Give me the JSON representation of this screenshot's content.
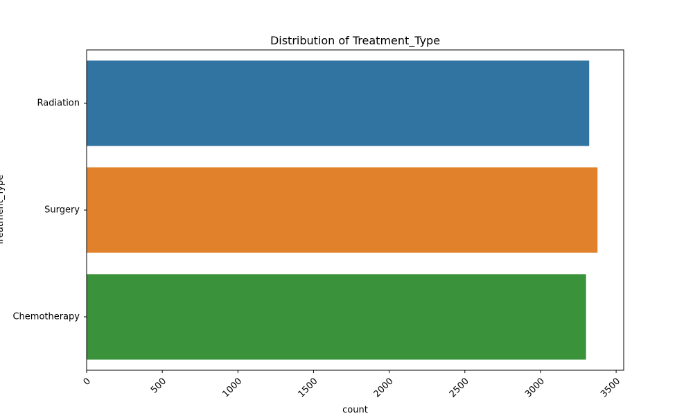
{
  "chart_data": {
    "type": "bar",
    "orientation": "horizontal",
    "title": "Distribution of Treatment_Type",
    "xlabel": "count",
    "ylabel": "Treatment_Type",
    "categories": [
      "Radiation",
      "Surgery",
      "Chemotherapy"
    ],
    "values": [
      3322,
      3377,
      3301
    ],
    "colors": [
      "#3274a1",
      "#e1812c",
      "#3a923a"
    ],
    "xlim": [
      0,
      3550
    ],
    "xticks": [
      0,
      500,
      1000,
      1500,
      2000,
      2500,
      3000,
      3500
    ],
    "xtick_labels": [
      "0",
      "500",
      "1000",
      "1500",
      "2000",
      "2500",
      "3000",
      "3500"
    ],
    "xtick_rotation": 45,
    "grid": false,
    "legend": "none"
  }
}
